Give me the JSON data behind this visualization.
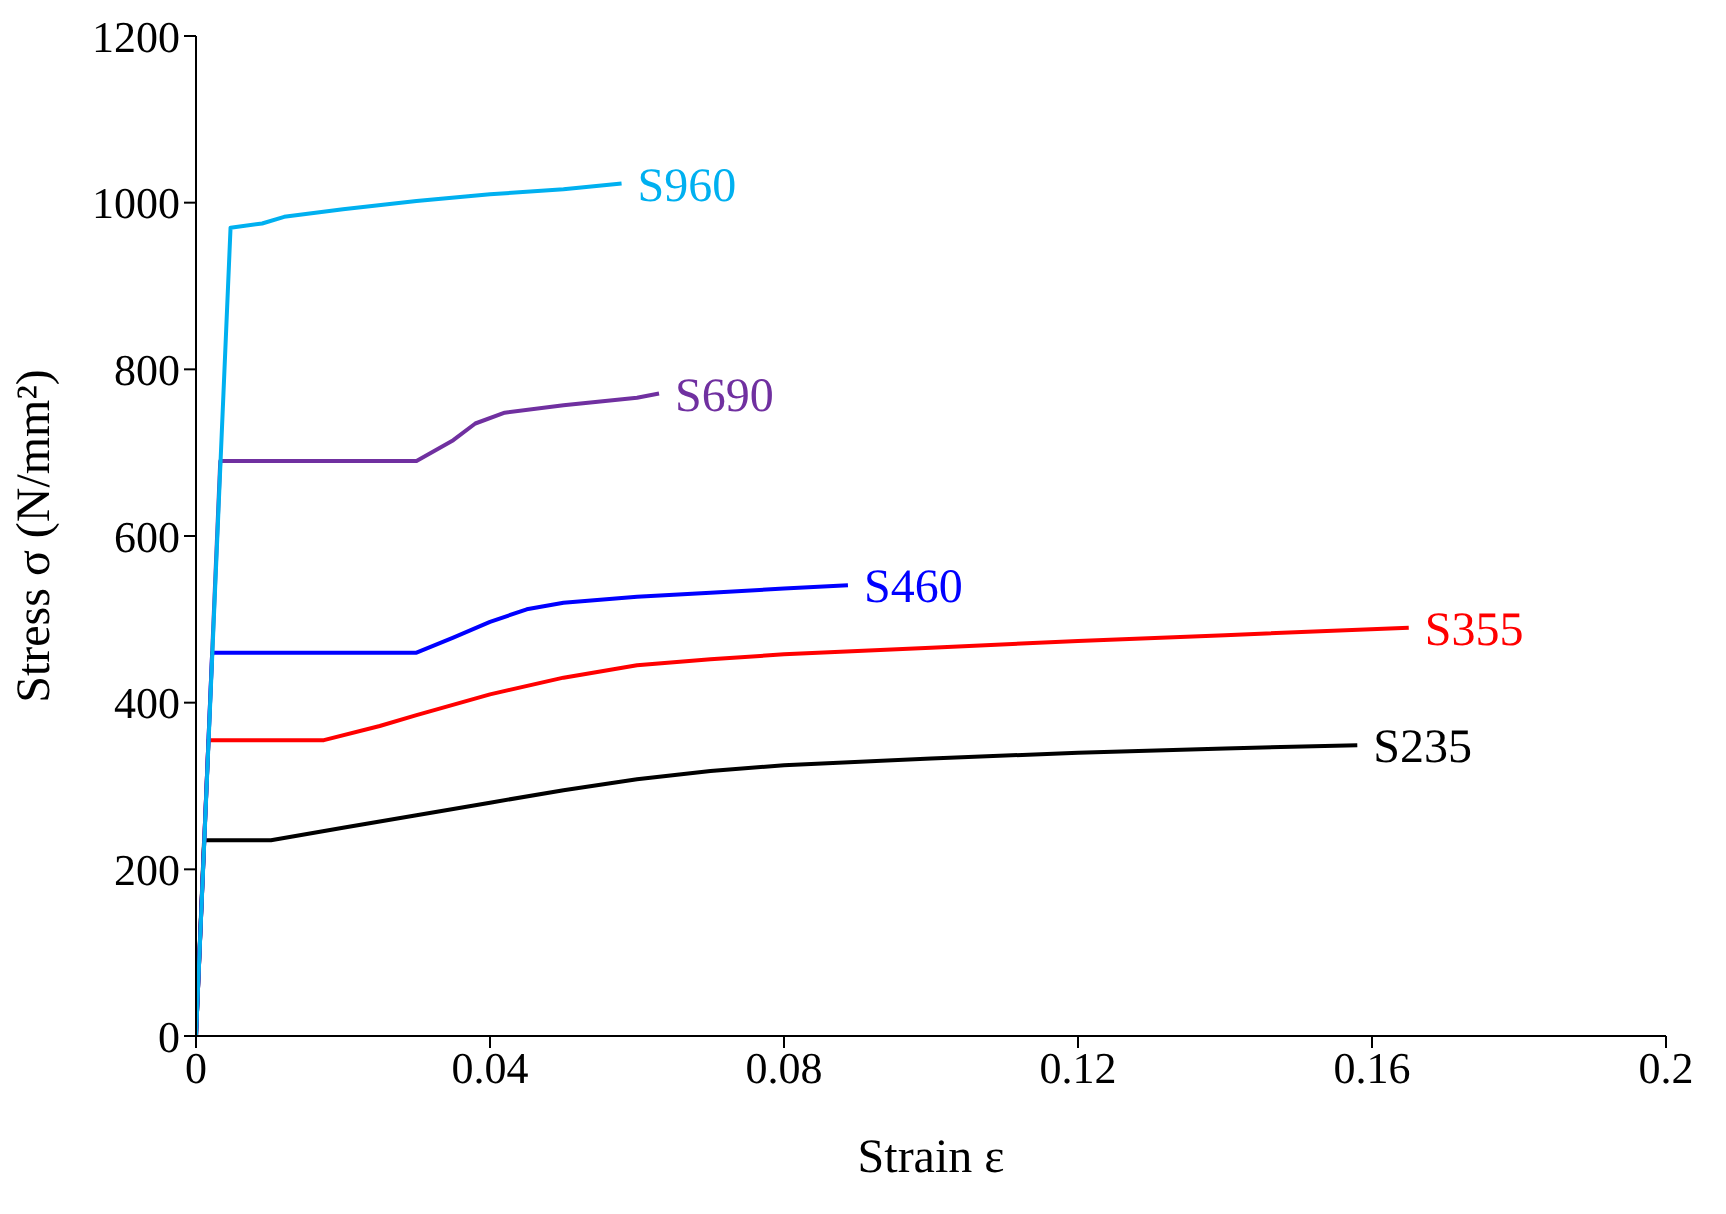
{
  "chart_data": {
    "type": "line",
    "xlabel": "Strain ε",
    "ylabel": "Stress σ (N/mm²)",
    "xlim": [
      0,
      0.2
    ],
    "xticks": [
      0,
      0.04,
      0.08,
      0.12,
      0.16,
      0.2
    ],
    "ylim": [
      0,
      1200
    ],
    "yticks": [
      0,
      200,
      400,
      600,
      800,
      1000,
      1200
    ],
    "marker": "none",
    "line_style": "solid",
    "series": [
      {
        "name": "S235",
        "color": "#000000",
        "x": [
          0,
          0.0011,
          0.0102,
          0.02,
          0.03,
          0.04,
          0.05,
          0.06,
          0.07,
          0.08,
          0.1,
          0.12,
          0.14,
          0.158
        ],
        "values": [
          0,
          235,
          235,
          250,
          265,
          280,
          295,
          308,
          318,
          325,
          333,
          340,
          345,
          349
        ]
      },
      {
        "name": "S355",
        "color": "#ff0000",
        "x": [
          0,
          0.0017,
          0.0174,
          0.025,
          0.03,
          0.04,
          0.05,
          0.06,
          0.07,
          0.08,
          0.1,
          0.12,
          0.14,
          0.165
        ],
        "values": [
          0,
          355,
          355,
          372,
          385,
          410,
          430,
          445,
          452,
          458,
          466,
          474,
          481,
          490
        ]
      },
      {
        "name": "S460",
        "color": "#0000ff",
        "x": [
          0,
          0.0022,
          0.03,
          0.035,
          0.04,
          0.045,
          0.05,
          0.06,
          0.07,
          0.08,
          0.0887
        ],
        "values": [
          0,
          460,
          460,
          478,
          497,
          512,
          520,
          527,
          532,
          537,
          541
        ]
      },
      {
        "name": "S690",
        "color": "#7030a0",
        "x": [
          0,
          0.0033,
          0.03,
          0.035,
          0.038,
          0.042,
          0.05,
          0.06,
          0.063
        ],
        "values": [
          0,
          690,
          690,
          715,
          735,
          748,
          757,
          766,
          771
        ]
      },
      {
        "name": "S960",
        "color": "#00b0f0",
        "x": [
          0,
          0.0047,
          0.009,
          0.012,
          0.02,
          0.03,
          0.04,
          0.05,
          0.0579
        ],
        "values": [
          0,
          970,
          975,
          983,
          992,
          1002,
          1010,
          1016,
          1023
        ]
      }
    ]
  }
}
